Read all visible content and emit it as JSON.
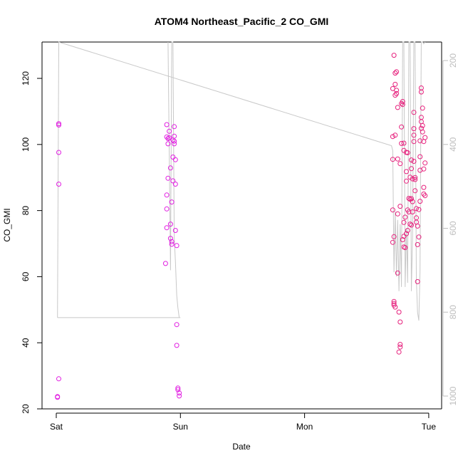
{
  "chart_data": {
    "type": "scatter",
    "title": "ATOM4 Northeast_Pacific_2 CO_GMI",
    "xlabel": "Date",
    "ylabel": "CO_GMI",
    "x_ticks": [
      "Sat",
      "Sun",
      "Mon",
      "Tue"
    ],
    "xlim_days": [
      -0.07,
      3.07
    ],
    "ylim": [
      20,
      131
    ],
    "y_ticks": [
      20,
      40,
      60,
      80,
      100,
      120
    ],
    "y2_ticks": [
      200,
      400,
      600,
      800,
      1000
    ],
    "y2lim": [
      1018,
      149
    ],
    "y2_reversed": true,
    "grid": false,
    "colors": {
      "point_magenta": "#e11ee1",
      "point_pink": "#e6207c",
      "pressure_line": "#c8c8c8",
      "right_axis": "#bdbdbd"
    },
    "series": [
      {
        "values": [
          [
            0.02,
            106.3
          ],
          [
            0.02,
            105.9
          ],
          [
            0.02,
            97.6
          ],
          [
            0.02,
            88.0
          ],
          [
            0.02,
            29.1
          ],
          [
            0.01,
            23.7
          ],
          [
            0.01,
            23.5
          ],
          [
            0.89,
            106.0
          ],
          [
            0.89,
            102.3
          ],
          [
            0.9,
            101.8
          ],
          [
            0.9,
            100.2
          ],
          [
            0.9,
            89.8
          ],
          [
            0.89,
            84.7
          ],
          [
            0.89,
            80.5
          ],
          [
            0.89,
            74.8
          ],
          [
            0.88,
            64.0
          ],
          [
            0.91,
            104.0
          ],
          [
            0.91,
            102.0
          ],
          [
            0.92,
            92.9
          ],
          [
            0.92,
            75.9
          ],
          [
            0.92,
            71.6
          ],
          [
            0.93,
            70.6
          ],
          [
            0.93,
            69.8
          ],
          [
            0.93,
            82.6
          ],
          [
            0.94,
            89.0
          ],
          [
            0.94,
            96.2
          ],
          [
            0.94,
            101.3
          ],
          [
            0.95,
            102.5
          ],
          [
            0.95,
            101.0
          ],
          [
            0.95,
            105.4
          ],
          [
            0.95,
            100.2
          ],
          [
            0.96,
            95.4
          ],
          [
            0.96,
            88.0
          ],
          [
            0.96,
            74.0
          ],
          [
            0.97,
            69.4
          ],
          [
            0.97,
            45.5
          ],
          [
            0.97,
            39.2
          ],
          [
            0.98,
            26.3
          ],
          [
            0.98,
            25.8
          ],
          [
            0.99,
            24.8
          ],
          [
            0.99,
            23.9
          ]
        ]
      },
      {
        "values": [
          [
            2.71,
            116.9
          ],
          [
            2.71,
            102.4
          ],
          [
            2.71,
            95.5
          ],
          [
            2.71,
            80.2
          ],
          [
            2.72,
            72.1
          ],
          [
            2.71,
            70.4
          ],
          [
            2.72,
            52.5
          ],
          [
            2.72,
            51.9
          ],
          [
            2.72,
            51.4
          ],
          [
            2.73,
            50.8
          ],
          [
            2.72,
            127.0
          ],
          [
            2.73,
            121.6
          ],
          [
            2.73,
            118.2
          ],
          [
            2.73,
            114.9
          ],
          [
            2.74,
            122.0
          ],
          [
            2.74,
            116.4
          ],
          [
            2.74,
            115.4
          ],
          [
            2.75,
            111.2
          ],
          [
            2.73,
            102.8
          ],
          [
            2.75,
            95.6
          ],
          [
            2.75,
            79.0
          ],
          [
            2.75,
            61.1
          ],
          [
            2.76,
            49.3
          ],
          [
            2.76,
            37.2
          ],
          [
            2.77,
            38.7
          ],
          [
            2.77,
            39.5
          ],
          [
            2.77,
            46.3
          ],
          [
            2.77,
            81.3
          ],
          [
            2.77,
            94.2
          ],
          [
            2.78,
            100.3
          ],
          [
            2.78,
            105.3
          ],
          [
            2.78,
            112.4
          ],
          [
            2.79,
            113.0
          ],
          [
            2.79,
            112.1
          ],
          [
            2.79,
            71.2
          ],
          [
            2.8,
            100.4
          ],
          [
            2.8,
            98.2
          ],
          [
            2.8,
            76.4
          ],
          [
            2.8,
            72.2
          ],
          [
            2.8,
            69.0
          ],
          [
            2.81,
            68.8
          ],
          [
            2.81,
            78.0
          ],
          [
            2.82,
            73.0
          ],
          [
            2.82,
            88.9
          ],
          [
            2.82,
            91.8
          ],
          [
            2.82,
            97.6
          ],
          [
            2.83,
            97.5
          ],
          [
            2.83,
            80.2
          ],
          [
            2.83,
            74.0
          ],
          [
            2.84,
            79.6
          ],
          [
            2.84,
            83.7
          ],
          [
            2.85,
            75.9
          ],
          [
            2.85,
            83.4
          ],
          [
            2.85,
            90.1
          ],
          [
            2.86,
            92.7
          ],
          [
            2.86,
            95.3
          ],
          [
            2.86,
            83.6
          ],
          [
            2.86,
            75.6
          ],
          [
            2.87,
            89.6
          ],
          [
            2.87,
            82.7
          ],
          [
            2.87,
            79.6
          ],
          [
            2.88,
            94.9
          ],
          [
            2.88,
            100.9
          ],
          [
            2.88,
            102.8
          ],
          [
            2.88,
            104.8
          ],
          [
            2.88,
            109.7
          ],
          [
            2.89,
            90.0
          ],
          [
            2.89,
            89.4
          ],
          [
            2.89,
            86.0
          ],
          [
            2.9,
            76.5
          ],
          [
            2.9,
            80.6
          ],
          [
            2.9,
            77.8
          ],
          [
            2.91,
            69.7
          ],
          [
            2.91,
            58.5
          ],
          [
            2.91,
            75.3
          ],
          [
            2.92,
            72.0
          ],
          [
            2.92,
            80.3
          ],
          [
            2.93,
            82.8
          ],
          [
            2.93,
            92.2
          ],
          [
            2.93,
            96.3
          ],
          [
            2.93,
            101.1
          ],
          [
            2.94,
            104.9
          ],
          [
            2.94,
            106.9
          ],
          [
            2.94,
            108.2
          ],
          [
            2.94,
            117.1
          ],
          [
            2.94,
            115.9
          ],
          [
            2.95,
            111.0
          ],
          [
            2.95,
            105.7
          ],
          [
            2.95,
            103.8
          ],
          [
            2.96,
            100.9
          ],
          [
            2.96,
            92.6
          ],
          [
            2.96,
            87.0
          ],
          [
            2.96,
            85.0
          ],
          [
            2.97,
            84.5
          ],
          [
            2.97,
            94.4
          ],
          [
            2.97,
            102.1
          ]
        ]
      }
    ],
    "pressure_series": {
      "values": [
        [
          0.01,
          813
        ],
        [
          0.02,
          147
        ],
        [
          2.7,
          403
        ],
        [
          2.71,
          415
        ],
        [
          2.72,
          705
        ],
        [
          2.73,
          560
        ],
        [
          2.74,
          715
        ],
        [
          2.75,
          580
        ],
        [
          2.76,
          750
        ],
        [
          2.77,
          590
        ],
        [
          2.78,
          740
        ],
        [
          2.79,
          148
        ],
        [
          2.8,
          148
        ],
        [
          2.81,
          740
        ],
        [
          2.82,
          600
        ],
        [
          2.83,
          730
        ],
        [
          2.84,
          148
        ],
        [
          2.85,
          148
        ],
        [
          2.86,
          750
        ],
        [
          2.87,
          620
        ],
        [
          2.88,
          148
        ],
        [
          2.89,
          148
        ],
        [
          2.9,
          720
        ],
        [
          2.91,
          800
        ],
        [
          2.92,
          820
        ],
        [
          2.93,
          700
        ],
        [
          2.94,
          148
        ],
        [
          2.95,
          148
        ],
        [
          2.96,
          160
        ],
        [
          2.97,
          148
        ]
      ],
      "spike_values": [
        [
          0.9,
          148
        ],
        [
          0.92,
          700
        ],
        [
          0.93,
          148
        ],
        [
          0.94,
          150
        ],
        [
          0.95,
          620
        ],
        [
          0.96,
          680
        ],
        [
          0.97,
          760
        ],
        [
          0.98,
          790
        ],
        [
          0.99,
          813
        ]
      ],
      "base_segment": [
        [
          0.01,
          813
        ],
        [
          1.0,
          813
        ]
      ]
    }
  }
}
